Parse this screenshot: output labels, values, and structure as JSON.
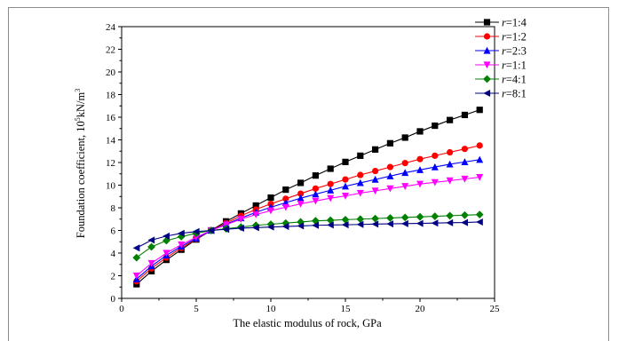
{
  "chart_data": {
    "type": "line",
    "title": "",
    "xlabel": "The elastic modulus of rock, GPa",
    "ylabel_prefix": "Foundation coefficient, 10",
    "ylabel_sup1": "5",
    "ylabel_mid": "kN/m",
    "ylabel_sup2": "3",
    "xlim": [
      0,
      25
    ],
    "ylim": [
      0,
      24
    ],
    "xticks": [
      0,
      5,
      10,
      15,
      20,
      25
    ],
    "yticks": [
      0,
      2,
      4,
      6,
      8,
      10,
      12,
      14,
      16,
      18,
      20,
      22,
      24
    ],
    "grid": false,
    "legend_position": "top-right",
    "x": [
      1,
      2,
      3,
      4,
      5,
      6,
      7,
      8,
      9,
      10,
      11,
      12,
      13,
      14,
      15,
      16,
      17,
      18,
      19,
      20,
      21,
      22,
      23,
      24
    ],
    "series": [
      {
        "name_italic": "r",
        "name_rest": "=1:4",
        "color": "#000000",
        "marker": "square",
        "values": [
          1.25,
          2.4,
          3.4,
          4.3,
          5.2,
          6.0,
          6.8,
          7.5,
          8.2,
          8.9,
          9.6,
          10.2,
          10.85,
          11.45,
          12.05,
          12.6,
          13.15,
          13.7,
          14.2,
          14.75,
          15.25,
          15.75,
          16.2,
          16.65
        ]
      },
      {
        "name_italic": "r",
        "name_rest": "=1:2",
        "color": "#ff0000",
        "marker": "circle",
        "values": [
          1.5,
          2.65,
          3.6,
          4.45,
          5.25,
          6.0,
          6.65,
          7.3,
          7.85,
          8.35,
          8.8,
          9.25,
          9.7,
          10.1,
          10.5,
          10.9,
          11.25,
          11.6,
          11.95,
          12.3,
          12.6,
          12.9,
          13.2,
          13.5
        ]
      },
      {
        "name_italic": "r",
        "name_rest": "=2:3",
        "color": "#0000ff",
        "marker": "triangle-up",
        "values": [
          1.7,
          2.85,
          3.8,
          4.6,
          5.3,
          6.0,
          6.55,
          7.1,
          7.6,
          8.05,
          8.45,
          8.85,
          9.2,
          9.55,
          9.9,
          10.2,
          10.5,
          10.8,
          11.1,
          11.35,
          11.6,
          11.85,
          12.05,
          12.25
        ]
      },
      {
        "name_italic": "r",
        "name_rest": "=1:1",
        "color": "#ff00ff",
        "marker": "triangle-down",
        "values": [
          2.0,
          3.1,
          4.0,
          4.75,
          5.4,
          6.0,
          6.5,
          7.0,
          7.4,
          7.75,
          8.05,
          8.35,
          8.6,
          8.85,
          9.05,
          9.3,
          9.5,
          9.7,
          9.9,
          10.1,
          10.25,
          10.4,
          10.55,
          10.7
        ]
      },
      {
        "name_italic": "r",
        "name_rest": "=4:1",
        "color": "#008000",
        "marker": "diamond",
        "values": [
          3.6,
          4.55,
          5.1,
          5.45,
          5.75,
          6.0,
          6.15,
          6.3,
          6.45,
          6.55,
          6.65,
          6.75,
          6.85,
          6.9,
          6.95,
          7.0,
          7.05,
          7.1,
          7.15,
          7.2,
          7.25,
          7.3,
          7.35,
          7.4
        ]
      },
      {
        "name_italic": "r",
        "name_rest": "=8:1",
        "color": "#000080",
        "marker": "triangle-left",
        "values": [
          4.45,
          5.15,
          5.5,
          5.75,
          5.9,
          6.0,
          6.1,
          6.2,
          6.25,
          6.3,
          6.35,
          6.4,
          6.45,
          6.48,
          6.5,
          6.53,
          6.56,
          6.58,
          6.6,
          6.62,
          6.65,
          6.68,
          6.7,
          6.75
        ]
      }
    ]
  }
}
